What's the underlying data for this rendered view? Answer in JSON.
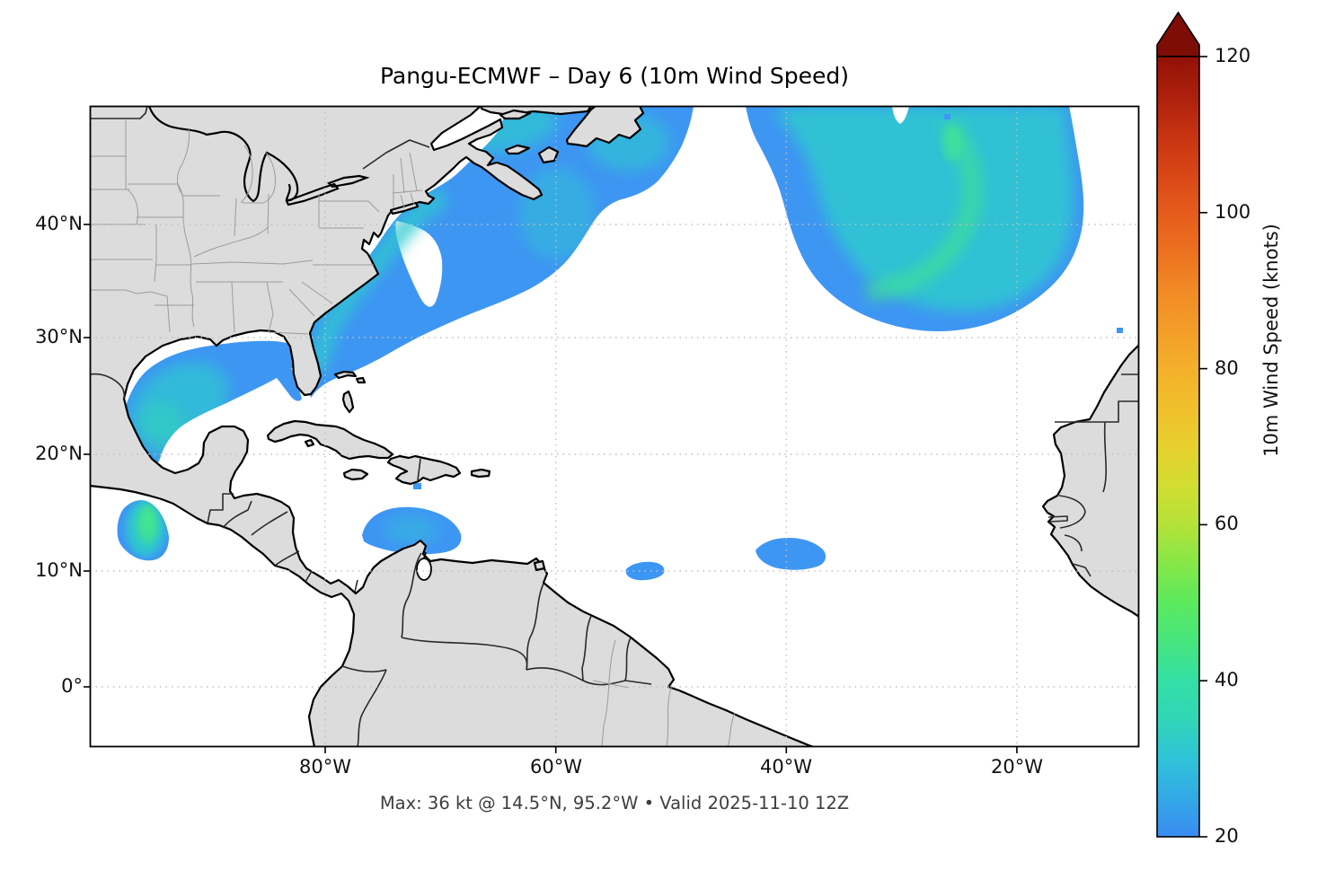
{
  "figure": {
    "title": "Pangu-ECMWF – Day 6 (10m Wind Speed)",
    "caption": "Max: 36 kt @ 14.5°N, 95.2°W • Valid 2025-11-10 12Z"
  },
  "axes": {
    "x_ticks": [
      "80°W",
      "60°W",
      "40°W",
      "20°W"
    ],
    "y_ticks": [
      "40°N",
      "30°N",
      "20°N",
      "10°N",
      "0°"
    ]
  },
  "colorbar": {
    "label": "10m Wind Speed (knots)",
    "ticks": [
      "120",
      "100",
      "80",
      "60",
      "40",
      "20"
    ],
    "vmin": 20,
    "vmax": 120,
    "extend": "max",
    "arrow_color": "#7d0d05",
    "stops": [
      {
        "value": 20,
        "color": "#3a8cf2"
      },
      {
        "value": 25,
        "color": "#33a9e6"
      },
      {
        "value": 30,
        "color": "#2fc3d8"
      },
      {
        "value": 35,
        "color": "#31d5b8"
      },
      {
        "value": 40,
        "color": "#34dfa5"
      },
      {
        "value": 45,
        "color": "#46e57e"
      },
      {
        "value": 50,
        "color": "#5ce95e"
      },
      {
        "value": 55,
        "color": "#86e748"
      },
      {
        "value": 60,
        "color": "#b4e238"
      },
      {
        "value": 65,
        "color": "#d2dd31"
      },
      {
        "value": 70,
        "color": "#e7d02e"
      },
      {
        "value": 75,
        "color": "#f0c02c"
      },
      {
        "value": 80,
        "color": "#f3b02b"
      },
      {
        "value": 85,
        "color": "#f39d28"
      },
      {
        "value": 90,
        "color": "#f18a25"
      },
      {
        "value": 95,
        "color": "#ec7120"
      },
      {
        "value": 100,
        "color": "#e55c1c"
      },
      {
        "value": 105,
        "color": "#d84617"
      },
      {
        "value": 110,
        "color": "#c53312"
      },
      {
        "value": 115,
        "color": "#ac200c"
      },
      {
        "value": 120,
        "color": "#931107"
      }
    ]
  },
  "palette": {
    "land": "#dcdcdc",
    "ocean": "#ffffff",
    "coastline": "#000000",
    "country_border": "#2a2a2a",
    "state_border": "#9b9b9b",
    "gridline": "#c0c0c0",
    "wind_low_blue": "#3e96f3",
    "wind_mid_teal": "#2fc9cf",
    "wind_high_green": "#3fe096"
  },
  "chart_data": {
    "type": "heatmap",
    "title": "Pangu-ECMWF – Day 6 (10m Wind Speed)",
    "model": "Pangu-ECMWF",
    "forecast_day": 6,
    "field": "10m Wind Speed",
    "units": "knots",
    "valid_time": "2025-11-10 12Z",
    "max": {
      "value_kt": 36,
      "lat": "14.5°N",
      "lon": "95.2°W"
    },
    "colorbar": {
      "min": 20,
      "max": 120,
      "tick_step": 20,
      "extend": "max",
      "label": "10m Wind Speed (knots)"
    },
    "map_extent": {
      "lon_min_deg": -100.4,
      "lon_max_deg": -9.4,
      "lat_min_deg": -5.2,
      "lat_max_deg": 50.3
    },
    "x_tick_longitudes": [
      "80°W",
      "60°W",
      "40°W",
      "20°W"
    ],
    "y_tick_latitudes": [
      "40°N",
      "30°N",
      "20°N",
      "10°N",
      "0°"
    ],
    "grid": "dotted, 10-degree spacing",
    "legend_position": "right vertical colorbar",
    "wind_regions": [
      {
        "name": "Gulf of Mexico",
        "approx_range_kt": [
          20,
          30
        ],
        "center": "25°N 93°W"
      },
      {
        "name": "Gulf of Tehuantepec (Pacific)",
        "approx_range_kt": [
          20,
          36
        ],
        "center": "14.5°N 95.2°W",
        "note": "forecast maximum 36 kt"
      },
      {
        "name": "U.S. East Coast / Gulf Stream to Canadian Maritimes",
        "approx_range_kt": [
          20,
          32
        ],
        "center": "36°N 72°W"
      },
      {
        "name": "Central North Atlantic",
        "approx_range_kt": [
          20,
          34
        ],
        "center": "42°N 30°W"
      },
      {
        "name": "Southern Caribbean off Colombia/Venezuela",
        "approx_range_kt": [
          20,
          27
        ],
        "center": "13°N 73°W"
      },
      {
        "name": "Tropical Atlantic near 10°N 52°W",
        "approx_range_kt": [
          20,
          24
        ]
      },
      {
        "name": "Tropical Atlantic near 11°N 36°W",
        "approx_range_kt": [
          20,
          24
        ]
      }
    ]
  }
}
